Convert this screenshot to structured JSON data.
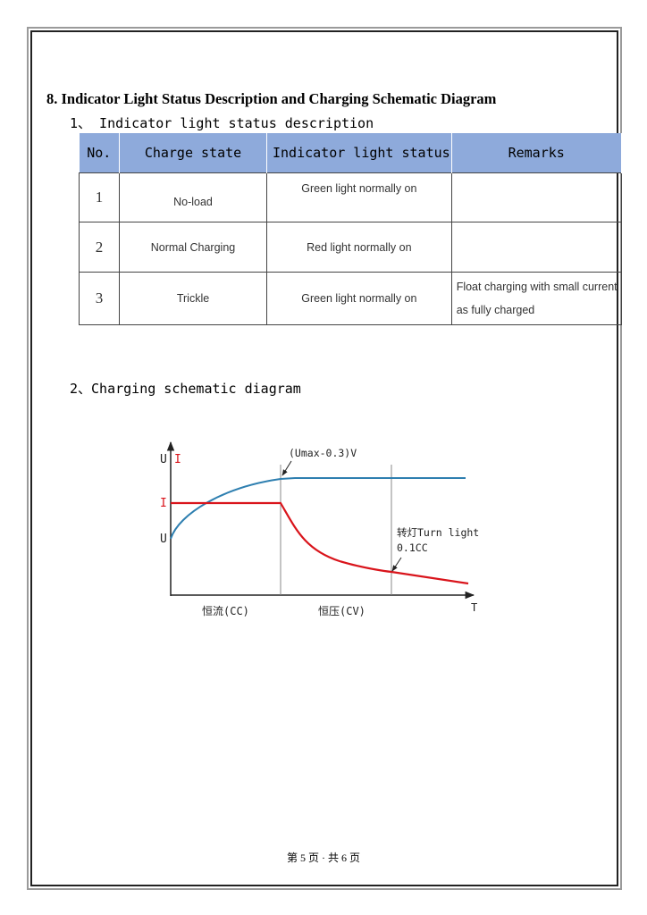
{
  "section_title": "8.  Indicator Light Status Description and Charging Schematic Diagram",
  "subsection1": "1、  Indicator light status description",
  "table": {
    "headers": [
      "No.",
      "Charge state",
      "Indicator light status",
      "Remarks"
    ],
    "rows": [
      {
        "no": "1",
        "state": "No-load",
        "status": "Green light normally on",
        "remarks": ""
      },
      {
        "no": "2",
        "state": "Normal Charging",
        "status": "Red light normally on",
        "remarks": ""
      },
      {
        "no": "3",
        "state": "Trickle",
        "status": "Green light normally on",
        "remarks": "Float charging with small current as fully charged"
      }
    ],
    "header_color": "#8eaadb"
  },
  "subsection2": "2、Charging schematic diagram",
  "diagram": {
    "y_label_u": "U",
    "y_label_i": "I",
    "tick_i": "I",
    "tick_u": "U",
    "x_label": "T",
    "annotation_voltage": "(Umax-0.3)V",
    "annotation_turn_light": "转灯Turn light",
    "annotation_current": "0.1CC",
    "phase_cc": "恒流(CC)",
    "phase_cv": "恒压(CV)",
    "voltage_color": "#2e7fb0",
    "current_color": "#d9141b"
  },
  "footer": "第 5 页 · 共 6 页"
}
